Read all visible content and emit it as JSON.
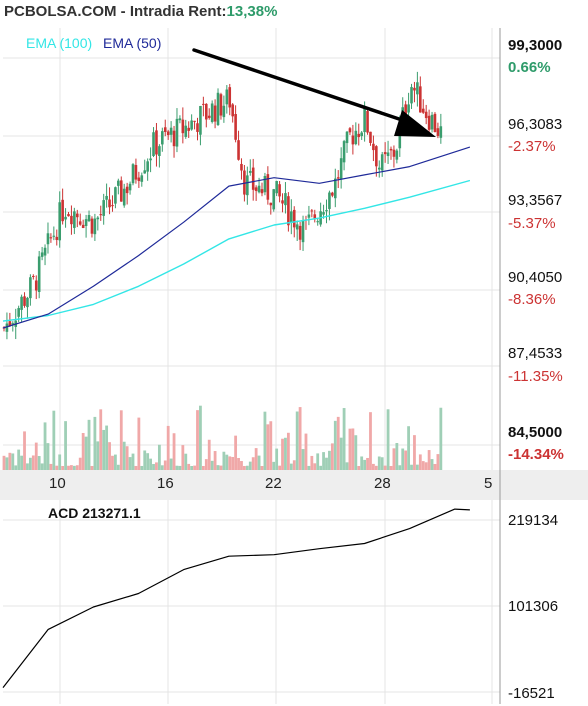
{
  "header": {
    "source": "PCBOLSA.COM",
    "separator": "-",
    "mode": "Intradia",
    "rent_label": "Rent:",
    "rent_value": "13,38%"
  },
  "legend": [
    {
      "name": "EMA (100)",
      "color": "#33e6e6"
    },
    {
      "name": "EMA (50)",
      "color": "#1f2a99"
    }
  ],
  "colors": {
    "up": "#3a9d6e",
    "down": "#cc3333",
    "vol_up": "#9fcfb6",
    "vol_down": "#f0a8a8",
    "grid": "#e4e4e4",
    "trend_arrow": "#000000"
  },
  "price_axis": [
    {
      "price": "99,3000",
      "pct": "0.66%",
      "pct_color": "#2e9b6a",
      "bold": true
    },
    {
      "price": "96,3083",
      "pct": "-2.37%",
      "pct_color": "#cc3333",
      "bold": false
    },
    {
      "price": "93,3567",
      "pct": "-5.37%",
      "pct_color": "#cc3333",
      "bold": false
    },
    {
      "price": "90,4050",
      "pct": "-8.36%",
      "pct_color": "#cc3333",
      "bold": false
    },
    {
      "price": "87,4533",
      "pct": "-11.35%",
      "pct_color": "#cc3333",
      "bold": false
    },
    {
      "price": "84,5000",
      "pct": "-14.34%",
      "pct_color": "#cc3333",
      "bold": true
    }
  ],
  "x_axis": {
    "ticks": [
      "10",
      "16",
      "22",
      "28",
      "5"
    ]
  },
  "acd": {
    "label": "ACD",
    "value": "213271.1",
    "axis": [
      "219134",
      "101306",
      "-16521"
    ]
  },
  "chart_data": {
    "type": "line",
    "series": [
      {
        "name": "EMA (100)",
        "x": [
          0,
          3,
          6,
          9,
          12,
          15,
          18,
          21,
          24,
          27,
          31
        ],
        "y": [
          89.85,
          90.05,
          90.45,
          91.1,
          91.9,
          92.8,
          93.3,
          93.55,
          93.9,
          94.3,
          94.9
        ]
      },
      {
        "name": "EMA (50)",
        "x": [
          0,
          3,
          6,
          9,
          12,
          15,
          18,
          21,
          24,
          27,
          31
        ],
        "y": [
          89.6,
          90.1,
          91.1,
          92.2,
          93.4,
          94.7,
          95.0,
          94.8,
          95.1,
          95.4,
          96.1
        ]
      },
      {
        "name": "ACD",
        "x": [
          0,
          3,
          6,
          9,
          12,
          15,
          18,
          21,
          24,
          27,
          30,
          31
        ],
        "y": [
          -8000,
          70000,
          100000,
          118000,
          150000,
          168000,
          170000,
          178000,
          185000,
          205000,
          231000,
          230000
        ]
      }
    ]
  }
}
